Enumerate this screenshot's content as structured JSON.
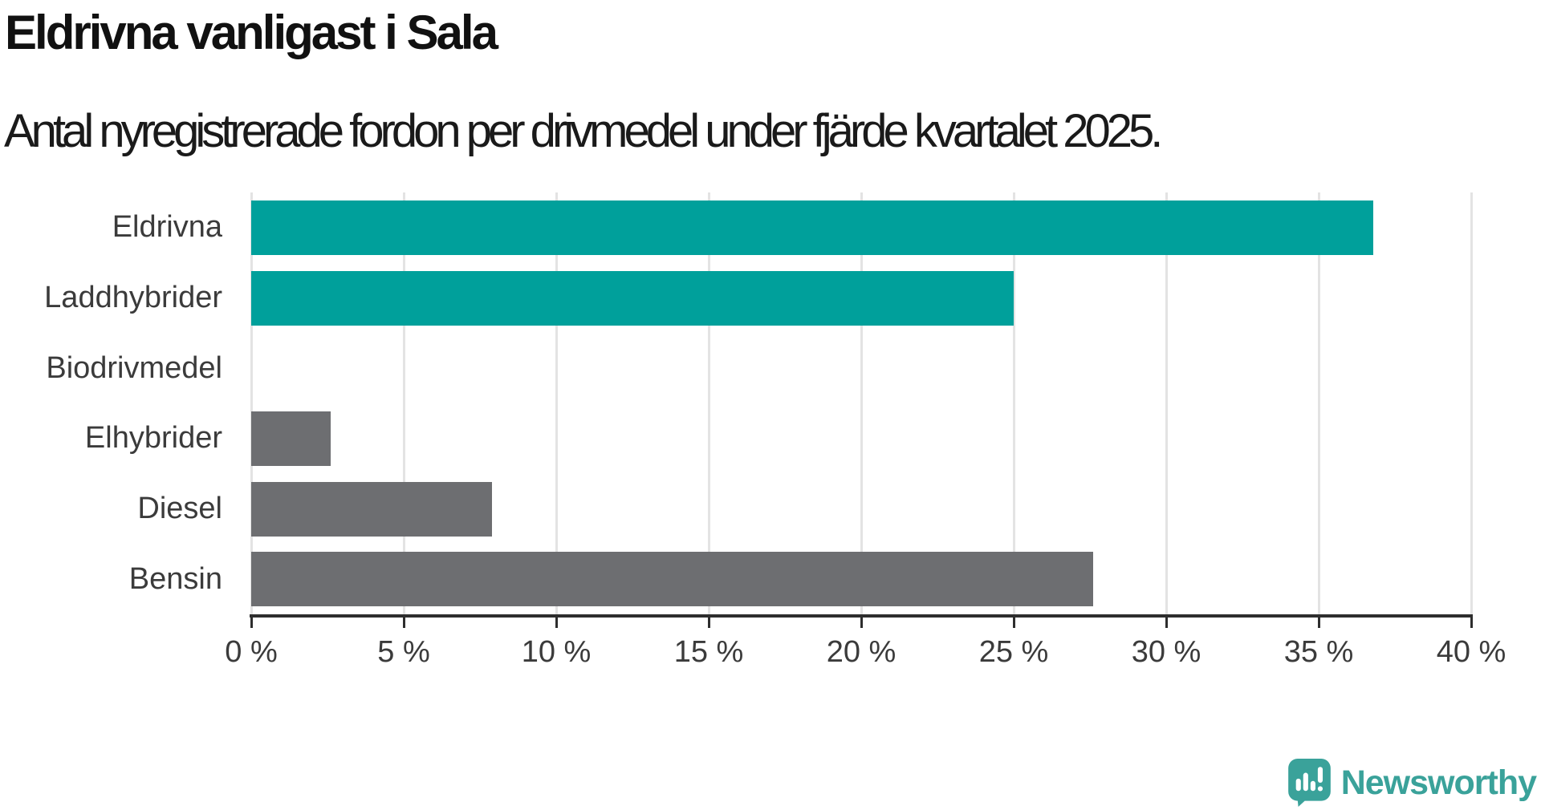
{
  "chart_data": {
    "type": "bar",
    "orientation": "horizontal",
    "title": "Eldrivna vanligast i Sala",
    "subtitle": "Antal nyregistrerade fordon per drivmedel under fjärde kvartalet 2025.",
    "categories": [
      "Eldrivna",
      "Laddhybrider",
      "Biodrivmedel",
      "Elhybrider",
      "Diesel",
      "Bensin"
    ],
    "values": [
      36.8,
      25.0,
      0,
      2.6,
      7.9,
      27.6
    ],
    "unit": "%",
    "bar_colors": [
      "#00a09b",
      "#00a09b",
      "#6d6e71",
      "#6d6e71",
      "#6d6e71",
      "#6d6e71"
    ],
    "xlabel": "",
    "ylabel": "",
    "xlim": [
      0,
      40
    ],
    "xticks": [
      0,
      5,
      10,
      15,
      20,
      25,
      30,
      35,
      40
    ],
    "xtick_format": "{v} %",
    "grid": "vertical-gridlines-on",
    "legend": "none"
  },
  "colors": {
    "accent_teal": "#00a09b",
    "neutral_gray": "#6d6e71",
    "gridline": "#e3e3e3",
    "axis": "#2e2e2e",
    "title_text": "#111111",
    "label_text": "#3b3b3b",
    "brand_teal": "#3aa29a"
  },
  "branding": {
    "name": "Newsworthy",
    "icon": "newsworthy-speech-bubble-chart-icon"
  }
}
